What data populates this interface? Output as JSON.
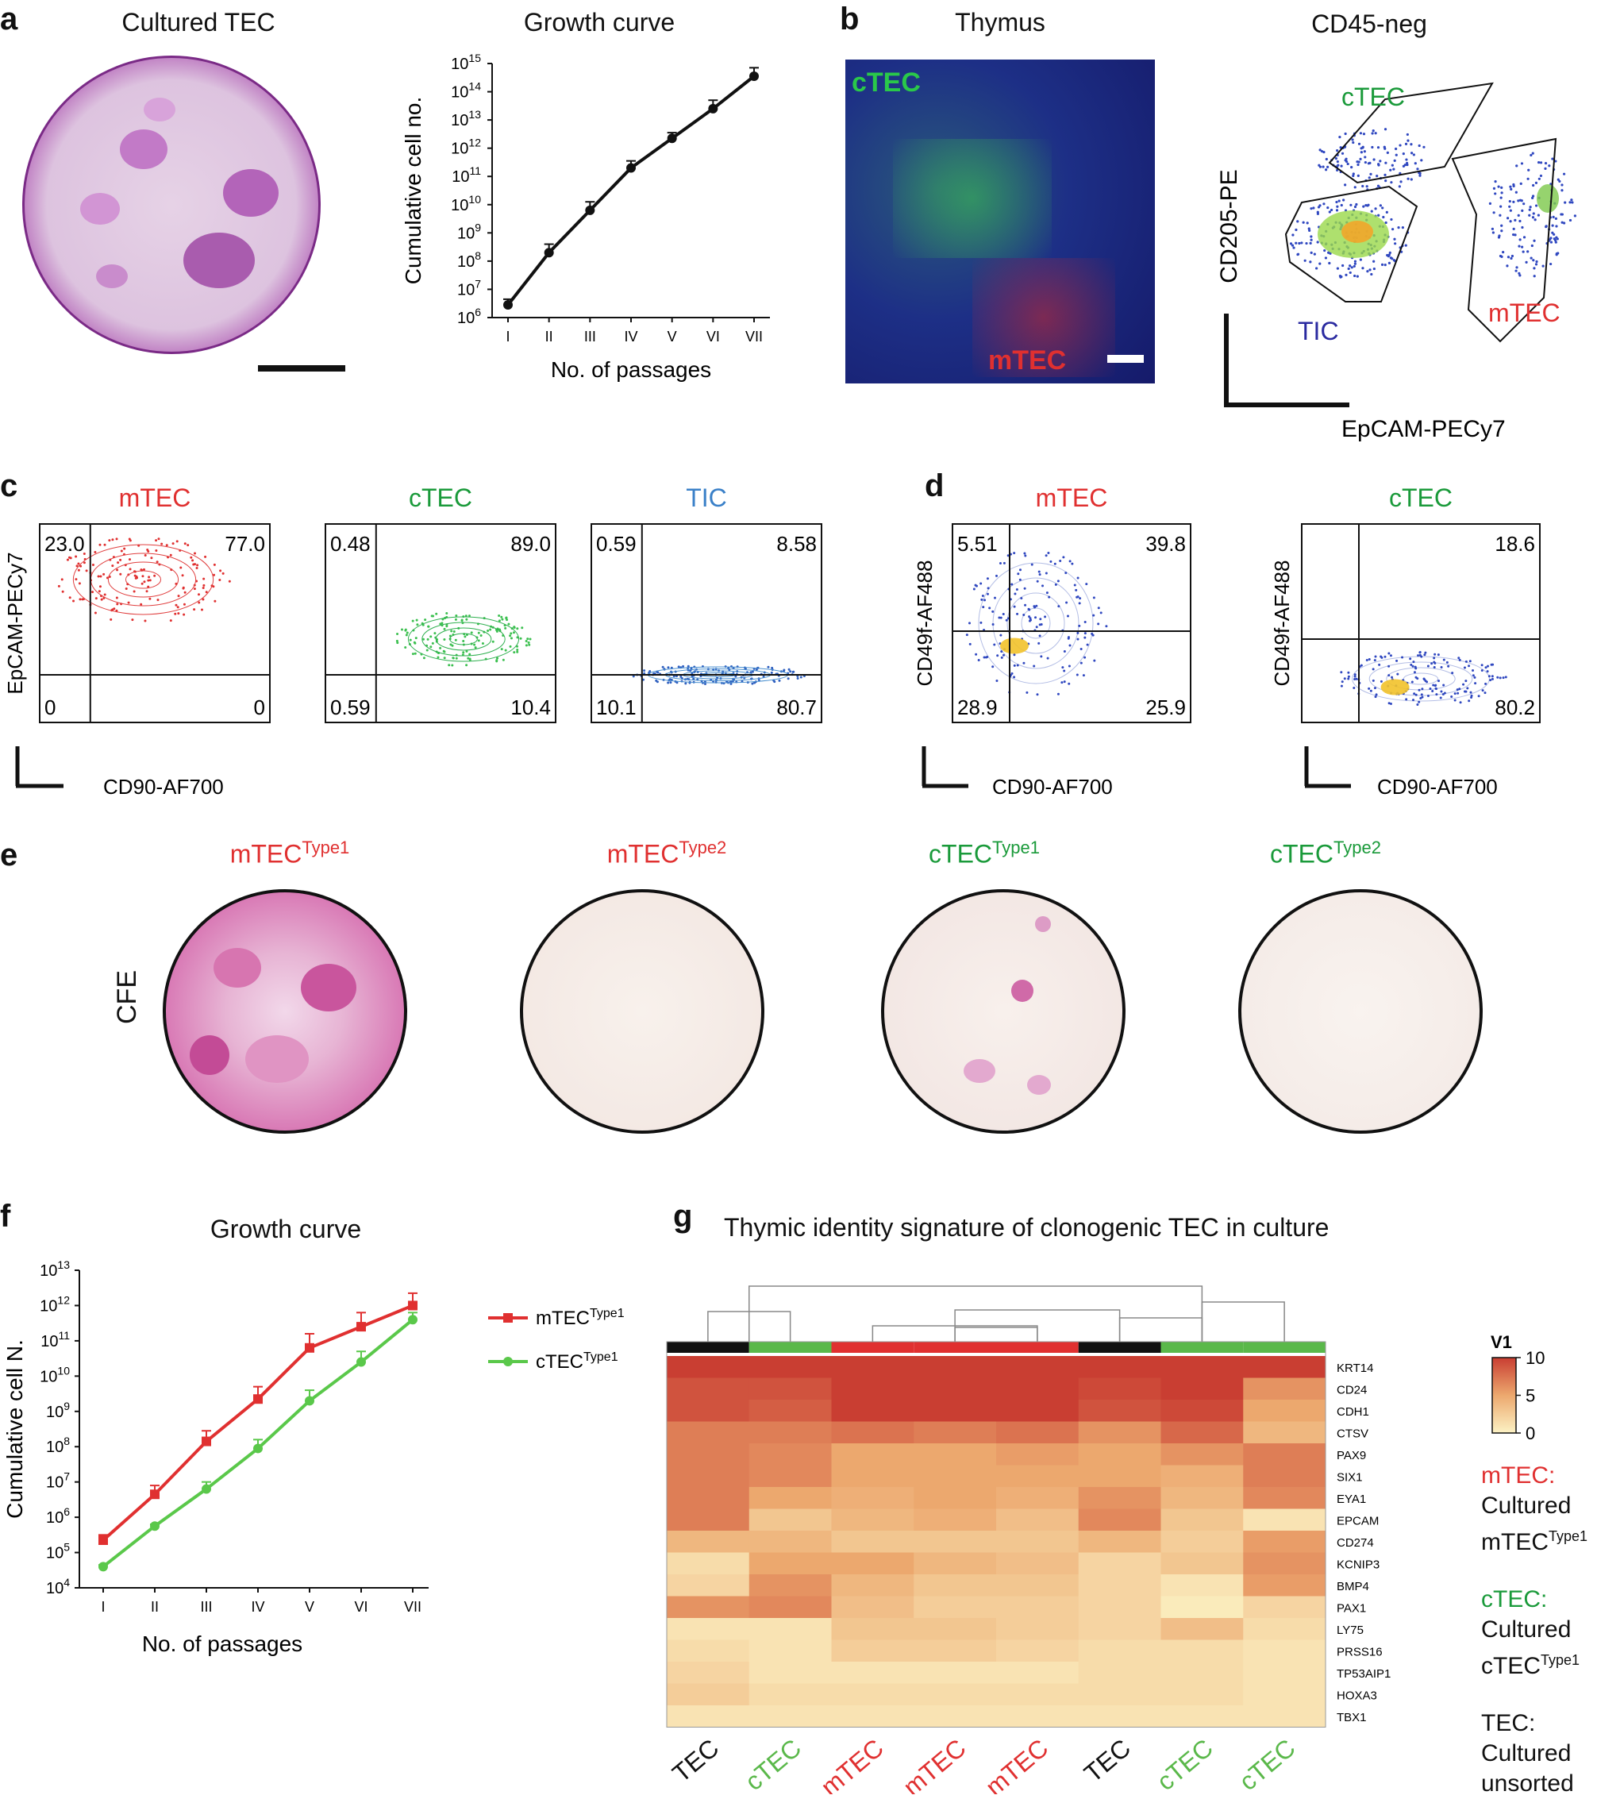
{
  "colors": {
    "mtec": "#e03030",
    "ctec": "#1a9a3a",
    "tic": "#3a80c8",
    "tic_dark": "#2a2aa0",
    "black": "#111111"
  },
  "panel_a": {
    "label": "a",
    "photo_title": "Cultured TEC",
    "chart_data": {
      "type": "line",
      "title": "Growth curve",
      "xlabel": "No. of passages",
      "ylabel": "Cumulative cell no.",
      "categories": [
        "I",
        "II",
        "III",
        "IV",
        "V",
        "VI",
        "VII"
      ],
      "values_log10": [
        6.45,
        8.3,
        9.8,
        11.3,
        12.35,
        13.4,
        14.55
      ],
      "error_log10": [
        0.2,
        0.3,
        0.3,
        0.25,
        0.2,
        0.3,
        0.3
      ],
      "ylim_log10": [
        6,
        15
      ],
      "yticks": [
        "10^6",
        "10^7",
        "10^8",
        "10^9",
        "10^10",
        "10^11",
        "10^12",
        "10^13",
        "10^14",
        "10^15"
      ]
    }
  },
  "panel_b": {
    "label": "b",
    "micro_title": "Thymus",
    "micro_label_ctec": "cTEC",
    "micro_label_mtec": "mTEC",
    "flow_title": "CD45-neg",
    "flow_xlabel": "EpCAM-PECy7",
    "flow_ylabel": "CD205-PE",
    "gates": [
      "cTEC",
      "mTEC",
      "TIC"
    ]
  },
  "panel_c": {
    "label": "c",
    "xlabel": "CD90-AF700",
    "ylabel": "EpCAM-PECy7",
    "plots": [
      {
        "title": "mTEC",
        "quadrants": [
          "23.0",
          "77.0",
          "0",
          "0"
        ]
      },
      {
        "title": "cTEC",
        "quadrants": [
          "0.48",
          "89.0",
          "0.59",
          "10.4"
        ]
      },
      {
        "title": "TIC",
        "quadrants": [
          "0.59",
          "8.58",
          "10.1",
          "80.7"
        ]
      }
    ]
  },
  "panel_d": {
    "label": "d",
    "xlabel": "CD90-AF700",
    "ylabel": "CD49f-AF488",
    "plots": [
      {
        "title": "mTEC",
        "quadrants": [
          "5.51",
          "39.8",
          "28.9",
          "25.9"
        ]
      },
      {
        "title": "cTEC",
        "quadrants": [
          "",
          "18.6",
          "",
          "80.2"
        ]
      }
    ]
  },
  "panel_e": {
    "label": "e",
    "row_label": "CFE",
    "dishes": [
      {
        "name": "mTEC",
        "sup": "Type1"
      },
      {
        "name": "mTEC",
        "sup": "Type2"
      },
      {
        "name": "cTEC",
        "sup": "Type1"
      },
      {
        "name": "cTEC",
        "sup": "Type2"
      }
    ]
  },
  "panel_f": {
    "label": "f",
    "chart_data": {
      "type": "line",
      "title": "Growth curve",
      "xlabel": "No. of passages",
      "ylabel": "Cumulative cell N.",
      "categories": [
        "I",
        "II",
        "III",
        "IV",
        "V",
        "VI",
        "VII"
      ],
      "ylim_log10": [
        4,
        13
      ],
      "yticks": [
        "10^4",
        "10^5",
        "10^6",
        "10^7",
        "10^8",
        "10^9",
        "10^10",
        "10^11",
        "10^12",
        "10^13"
      ],
      "series": [
        {
          "name": "mTEC",
          "sup": "Type1",
          "values_log10": [
            5.35,
            6.65,
            8.15,
            9.35,
            10.8,
            11.4,
            12.0
          ],
          "error_log10": [
            0.15,
            0.25,
            0.3,
            0.35,
            0.4,
            0.4,
            0.35
          ]
        },
        {
          "name": "cTEC",
          "sup": "Type1",
          "values_log10": [
            4.6,
            5.75,
            6.8,
            7.95,
            9.3,
            10.4,
            11.6
          ],
          "error_log10": [
            0.05,
            0.05,
            0.2,
            0.25,
            0.3,
            0.3,
            0.2
          ]
        }
      ]
    }
  },
  "panel_g": {
    "label": "g",
    "chart_data": {
      "type": "heatmap",
      "title": "Thymic identity signature of clonogenic TEC in culture",
      "genes": [
        "KRT14",
        "CD24",
        "CDH1",
        "CTSV",
        "PAX9",
        "SIX1",
        "EYA1",
        "EPCAM",
        "CD274",
        "KCNIP3",
        "BMP4",
        "PAX1",
        "LY75",
        "PRSS16",
        "TP53AIP1",
        "HOXA3",
        "TBX1"
      ],
      "columns": [
        "TEC",
        "cTEC",
        "mTEC",
        "mTEC",
        "mTEC",
        "TEC",
        "cTEC",
        "cTEC"
      ],
      "column_groups": [
        "TEC",
        "cTEC",
        "mTEC",
        "mTEC",
        "mTEC",
        "TEC",
        "cTEC",
        "cTEC"
      ],
      "values": [
        [
          10,
          10,
          10,
          10,
          10,
          10,
          10,
          10
        ],
        [
          9,
          9,
          10,
          10,
          10,
          9.5,
          10,
          6
        ],
        [
          9,
          8.5,
          10,
          10,
          10,
          9,
          9.5,
          5
        ],
        [
          7,
          7,
          7.5,
          7,
          7.5,
          6,
          8,
          4
        ],
        [
          7,
          6.5,
          5,
          5,
          5.5,
          5,
          6,
          7
        ],
        [
          7,
          6.5,
          5,
          5,
          5,
          5,
          4.5,
          7
        ],
        [
          7,
          5,
          4.5,
          5,
          4.5,
          6,
          4,
          6.5
        ],
        [
          7,
          3,
          4,
          4.5,
          3.5,
          6.5,
          3,
          1
        ],
        [
          4,
          4,
          3,
          3,
          3,
          4,
          2.5,
          5.5
        ],
        [
          1.5,
          5,
          5,
          4,
          3.5,
          2,
          3,
          6
        ],
        [
          2,
          6,
          4,
          3,
          3,
          2,
          1,
          5.5
        ],
        [
          6,
          6.5,
          3.5,
          2.5,
          2.5,
          2,
          0.5,
          2
        ],
        [
          1,
          1,
          3,
          3,
          2.5,
          2,
          3.5,
          1.5
        ],
        [
          1.5,
          1,
          2.5,
          2.5,
          2,
          1.5,
          1.5,
          1
        ],
        [
          2,
          1,
          1,
          1,
          1,
          1.5,
          1.5,
          1
        ],
        [
          2.5,
          1.5,
          1.5,
          1.5,
          1.5,
          1.5,
          1.5,
          1
        ],
        [
          1,
          1,
          1,
          1,
          1,
          1,
          1,
          1
        ]
      ],
      "legend_title": "V1",
      "legend_ticks": [
        "10",
        "5",
        "0"
      ],
      "legend_range": [
        0,
        10
      ]
    },
    "key": [
      {
        "abbr": "mTEC:",
        "line1": "Cultured",
        "line2": "mTEC",
        "sup": "Type1"
      },
      {
        "abbr": "cTEC:",
        "line1": "Cultured",
        "line2": "cTEC",
        "sup": "Type1"
      },
      {
        "abbr": "TEC:",
        "line1": "Cultured",
        "line2": "unsorted",
        "sup": ""
      }
    ]
  }
}
